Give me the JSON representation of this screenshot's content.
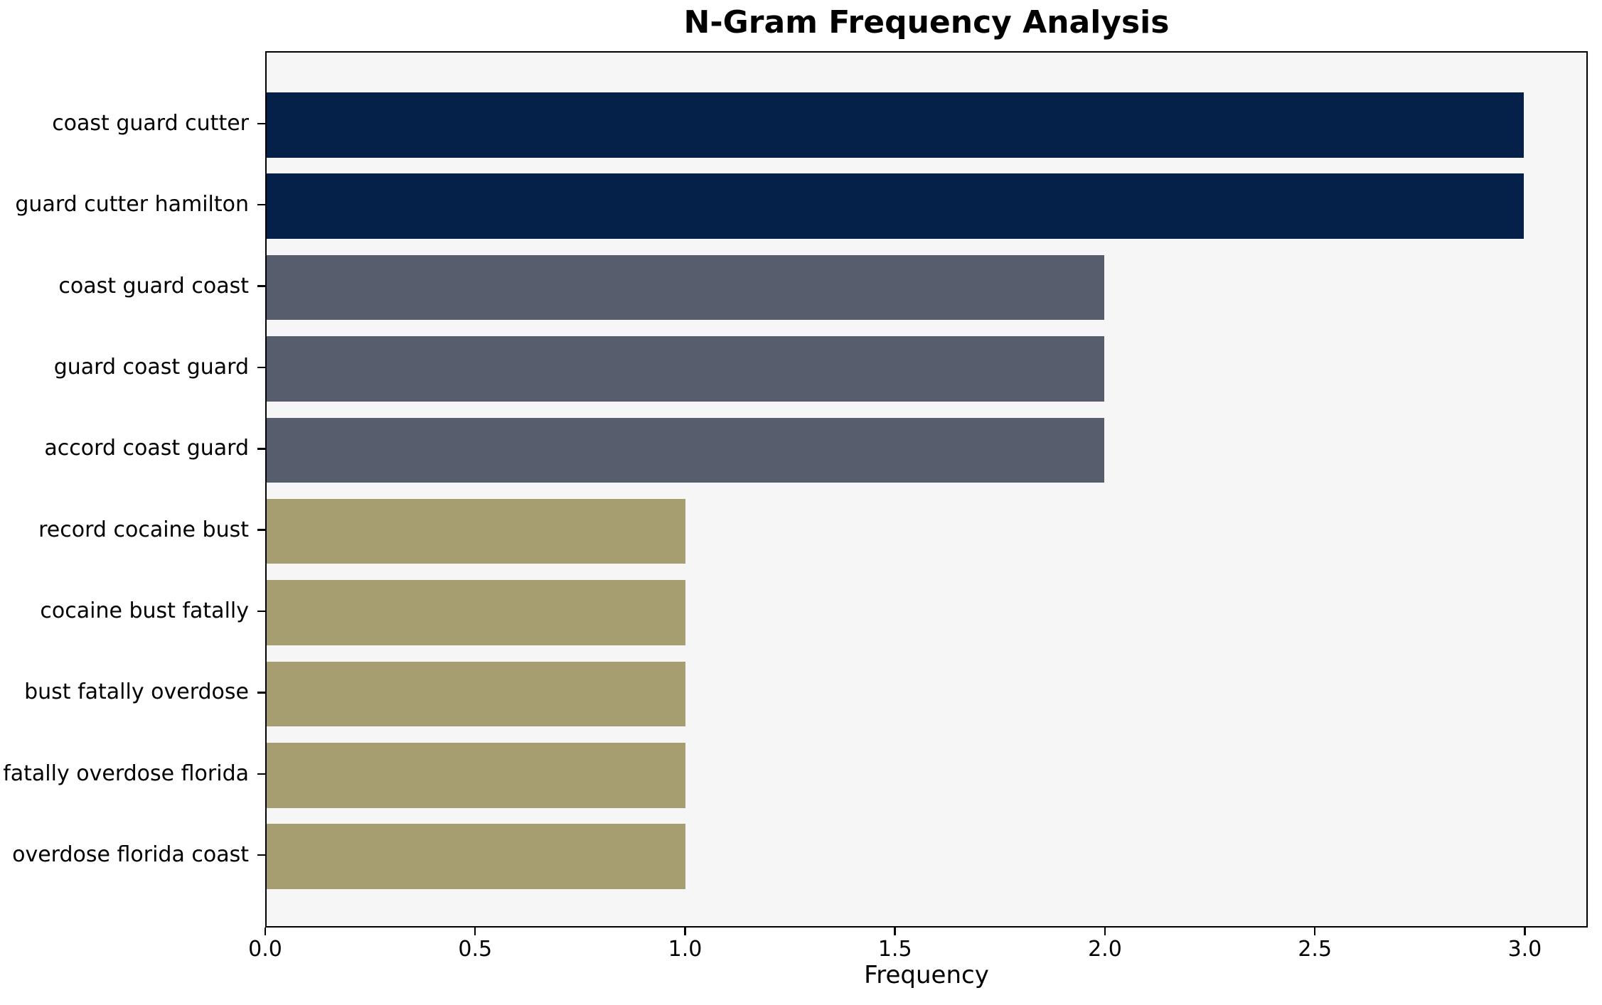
{
  "chart_data": {
    "type": "bar",
    "orientation": "horizontal",
    "title": "N-Gram Frequency Analysis",
    "xlabel": "Frequency",
    "ylabel": "",
    "categories": [
      "coast guard cutter",
      "guard cutter hamilton",
      "coast guard coast",
      "guard coast guard",
      "accord coast guard",
      "record cocaine bust",
      "cocaine bust fatally",
      "bust fatally overdose",
      "fatally overdose florida",
      "overdose florida coast"
    ],
    "values": [
      3,
      3,
      2,
      2,
      2,
      1,
      1,
      1,
      1,
      1
    ],
    "bar_colors": [
      "#05214a",
      "#05214a",
      "#575d6c",
      "#575d6c",
      "#575d6c",
      "#a69e71",
      "#a69e71",
      "#a69e71",
      "#a69e71",
      "#a69e71"
    ],
    "palette": {
      "navy": "#05214a",
      "slate": "#575d6c",
      "khaki": "#a69e71"
    },
    "xlim": [
      0,
      3.15
    ],
    "xticks": [
      0,
      0.5,
      1,
      1.5,
      2,
      2.5,
      3
    ],
    "xtick_labels": [
      "0.0",
      "0.5",
      "1.0",
      "1.5",
      "2.0",
      "2.5",
      "3.0"
    ],
    "bar_height_fraction": 0.8,
    "grid": false,
    "legend": false,
    "plot_background": "#f6f6f7",
    "figure_background": "#ffffff",
    "spine_color": "#000000"
  }
}
